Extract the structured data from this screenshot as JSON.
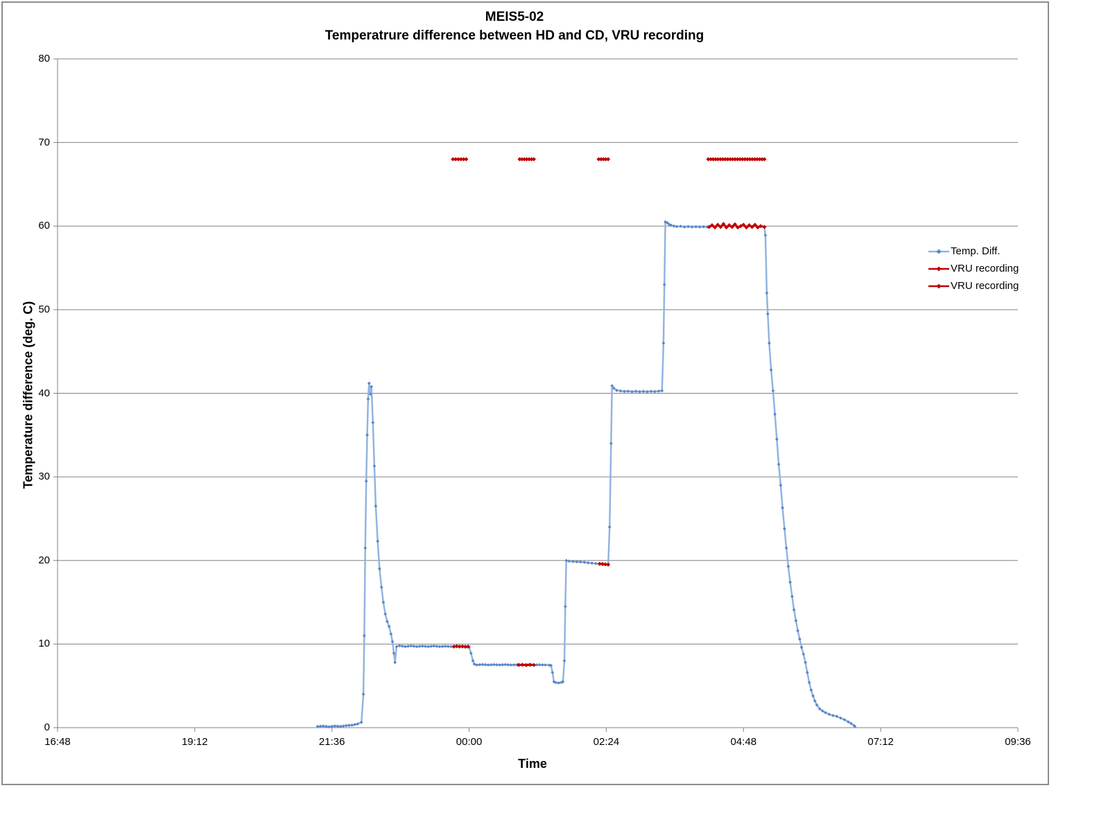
{
  "page": {
    "background": "#FFFFFF"
  },
  "chart": {
    "frame_border_color": "#8C8C8C",
    "colors": {
      "temp_diff_line": "#92B4DF",
      "temp_diff_marker": "#5B86C8",
      "vru_recording": "#C00000",
      "gridline": "#808080",
      "axis": "#808080",
      "text": "#000000"
    }
  },
  "chart_data": {
    "type": "line",
    "title": "MEIS5-02",
    "subtitle": "Temperatrure difference between HD and CD, VRU recording",
    "xlabel": "Time",
    "ylabel": "Temperature difference (deg. C)",
    "grid": "horizontal",
    "legend_position": "right-inside",
    "x_axis": {
      "unit": "minutes after 16:48",
      "total_minutes": 1008,
      "tick_interval_minutes": 144,
      "tick_labels": [
        "16:48",
        "19:12",
        "21:36",
        "00:00",
        "02:24",
        "04:48",
        "07:12",
        "09:36"
      ]
    },
    "y_axis": {
      "min": 0,
      "max": 80,
      "tick_interval": 10,
      "tick_labels": [
        "0",
        "10",
        "20",
        "30",
        "40",
        "50",
        "60",
        "70",
        "80"
      ]
    },
    "legend": [
      {
        "label": "Temp. Diff.",
        "line_color": "#92B4DF",
        "marker_color": "#5B86C8"
      },
      {
        "label": "VRU recording",
        "line_color": "#C00000",
        "marker_color": "#C00000"
      },
      {
        "label": "VRU recording",
        "line_color": "#C00000",
        "marker_color": "#C00000"
      }
    ],
    "series": [
      {
        "name": "Temp. Diff.",
        "style": "line+marker",
        "points": [
          [
            273,
            0.15
          ],
          [
            279,
            0.2
          ],
          [
            285,
            0.1
          ],
          [
            291,
            0.2
          ],
          [
            297,
            0.15
          ],
          [
            303,
            0.25
          ],
          [
            309,
            0.3
          ],
          [
            315,
            0.45
          ],
          [
            319,
            0.65
          ],
          [
            321,
            4
          ],
          [
            322,
            11
          ],
          [
            323,
            21.5
          ],
          [
            324,
            29.5
          ],
          [
            325,
            35
          ],
          [
            326,
            39.3
          ],
          [
            327,
            41.2
          ],
          [
            328.5,
            39.9
          ],
          [
            329.5,
            40.8
          ],
          [
            331,
            36.5
          ],
          [
            332.5,
            31.3
          ],
          [
            334,
            26.5
          ],
          [
            336,
            22.3
          ],
          [
            338,
            19
          ],
          [
            340,
            16.8
          ],
          [
            342,
            15
          ],
          [
            344,
            13.6
          ],
          [
            346,
            12.7
          ],
          [
            348,
            12.1
          ],
          [
            350,
            11.2
          ],
          [
            351.5,
            10.3
          ],
          [
            353,
            8.9
          ],
          [
            354.2,
            7.8
          ],
          [
            355.8,
            9.7
          ],
          [
            359,
            9.8
          ],
          [
            365,
            9.7
          ],
          [
            371,
            9.78
          ],
          [
            377,
            9.7
          ],
          [
            383,
            9.76
          ],
          [
            389,
            9.7
          ],
          [
            395,
            9.77
          ],
          [
            401,
            9.7
          ],
          [
            407,
            9.74
          ],
          [
            413,
            9.7
          ],
          [
            419,
            9.74
          ],
          [
            425,
            9.7
          ],
          [
            430,
            9.7
          ],
          [
            432,
            9.65
          ],
          [
            434,
            8.9
          ],
          [
            436,
            8.0
          ],
          [
            437.5,
            7.6
          ],
          [
            440,
            7.5
          ],
          [
            446,
            7.55
          ],
          [
            452,
            7.5
          ],
          [
            458,
            7.54
          ],
          [
            464,
            7.5
          ],
          [
            470,
            7.54
          ],
          [
            476,
            7.5
          ],
          [
            482,
            7.53
          ],
          [
            488,
            7.5
          ],
          [
            494,
            7.52
          ],
          [
            500,
            7.5
          ],
          [
            506,
            7.52
          ],
          [
            512,
            7.5
          ],
          [
            516,
            7.48
          ],
          [
            518,
            7.45
          ],
          [
            519.5,
            6.6
          ],
          [
            521,
            5.5
          ],
          [
            523,
            5.4
          ],
          [
            526,
            5.35
          ],
          [
            529,
            5.42
          ],
          [
            530.5,
            5.5
          ],
          [
            532,
            8
          ],
          [
            533,
            14.5
          ],
          [
            534,
            20.0
          ],
          [
            537,
            19.92
          ],
          [
            541,
            19.88
          ],
          [
            545,
            19.85
          ],
          [
            549,
            19.82
          ],
          [
            553,
            19.78
          ],
          [
            557,
            19.72
          ],
          [
            561,
            19.68
          ],
          [
            565,
            19.64
          ],
          [
            569,
            19.6
          ],
          [
            573,
            19.56
          ],
          [
            578,
            19.5
          ],
          [
            579.5,
            24
          ],
          [
            581,
            34
          ],
          [
            582,
            40.9
          ],
          [
            584,
            40.6
          ],
          [
            587,
            40.35
          ],
          [
            591,
            40.28
          ],
          [
            595,
            40.22
          ],
          [
            599,
            40.25
          ],
          [
            603,
            40.2
          ],
          [
            607,
            40.24
          ],
          [
            611,
            40.2
          ],
          [
            615,
            40.23
          ],
          [
            619,
            40.2
          ],
          [
            623,
            40.24
          ],
          [
            627,
            40.21
          ],
          [
            631,
            40.26
          ],
          [
            634.5,
            40.3
          ],
          [
            636,
            46
          ],
          [
            637,
            53
          ],
          [
            638,
            60.5
          ],
          [
            640,
            60.4
          ],
          [
            642,
            60.2
          ],
          [
            644,
            60.1
          ],
          [
            647,
            60.0
          ],
          [
            650,
            59.95
          ],
          [
            654,
            59.98
          ],
          [
            658,
            59.9
          ],
          [
            662,
            59.95
          ],
          [
            666,
            59.9
          ],
          [
            670,
            59.93
          ],
          [
            674,
            59.9
          ],
          [
            678,
            59.92
          ],
          [
            682,
            59.9
          ],
          [
            684,
            59.9
          ],
          [
            687,
            60.1
          ],
          [
            690,
            59.85
          ],
          [
            693,
            60.15
          ],
          [
            696,
            59.9
          ],
          [
            699,
            60.25
          ],
          [
            702,
            59.85
          ],
          [
            705,
            60.1
          ],
          [
            708,
            59.9
          ],
          [
            711,
            60.2
          ],
          [
            714,
            59.85
          ],
          [
            717,
            60.0
          ],
          [
            720,
            60.15
          ],
          [
            723,
            59.85
          ],
          [
            726,
            60.1
          ],
          [
            729,
            59.9
          ],
          [
            732,
            60.15
          ],
          [
            735,
            59.85
          ],
          [
            738,
            60.0
          ],
          [
            742,
            59.9
          ],
          [
            743,
            58.9
          ],
          [
            744.5,
            52
          ],
          [
            745.5,
            49.5
          ],
          [
            747,
            46
          ],
          [
            749,
            42.8
          ],
          [
            751,
            40.3
          ],
          [
            753,
            37.5
          ],
          [
            755,
            34.5
          ],
          [
            757,
            31.5
          ],
          [
            759,
            29
          ],
          [
            761,
            26.3
          ],
          [
            763,
            23.8
          ],
          [
            765,
            21.5
          ],
          [
            767,
            19.3
          ],
          [
            769,
            17.4
          ],
          [
            771,
            15.7
          ],
          [
            773,
            14.1
          ],
          [
            775,
            12.8
          ],
          [
            777,
            11.6
          ],
          [
            779,
            10.6
          ],
          [
            781,
            9.6
          ],
          [
            783,
            8.8
          ],
          [
            785,
            7.8
          ],
          [
            787,
            6.6
          ],
          [
            789,
            5.4
          ],
          [
            791,
            4.5
          ],
          [
            793,
            3.8
          ],
          [
            795,
            3.2
          ],
          [
            797,
            2.7
          ],
          [
            800,
            2.25
          ],
          [
            803,
            2.0
          ],
          [
            806,
            1.8
          ],
          [
            810,
            1.6
          ],
          [
            814,
            1.45
          ],
          [
            818,
            1.35
          ],
          [
            822,
            1.15
          ],
          [
            826,
            0.95
          ],
          [
            830,
            0.7
          ],
          [
            833,
            0.5
          ],
          [
            836,
            0.25
          ],
          [
            837,
            0.15
          ]
        ]
      },
      {
        "name": "VRU recording",
        "style": "line+marker",
        "description": "recording periods drawn over the temperature curve",
        "segments": [
          [
            [
              416,
              9.7
            ],
            [
              419,
              9.74
            ],
            [
              422,
              9.7
            ],
            [
              425,
              9.72
            ],
            [
              428,
              9.68
            ],
            [
              431,
              9.7
            ]
          ],
          [
            [
              484,
              7.5
            ],
            [
              488,
              7.53
            ],
            [
              492,
              7.49
            ],
            [
              496,
              7.52
            ],
            [
              500,
              7.5
            ]
          ],
          [
            [
              569,
              19.6
            ],
            [
              572,
              19.57
            ],
            [
              575,
              19.54
            ],
            [
              578,
              19.5
            ]
          ],
          [
            [
              684,
              59.9
            ],
            [
              687,
              60.1
            ],
            [
              690,
              59.85
            ],
            [
              693,
              60.15
            ],
            [
              696,
              59.9
            ],
            [
              699,
              60.25
            ],
            [
              702,
              59.85
            ],
            [
              705,
              60.1
            ],
            [
              708,
              59.9
            ],
            [
              711,
              60.2
            ],
            [
              714,
              59.85
            ],
            [
              717,
              60.0
            ],
            [
              720,
              60.15
            ],
            [
              723,
              59.85
            ],
            [
              726,
              60.1
            ],
            [
              729,
              59.9
            ],
            [
              732,
              60.15
            ],
            [
              735,
              59.85
            ],
            [
              738,
              60.0
            ],
            [
              742,
              59.9
            ]
          ]
        ]
      },
      {
        "name": "VRU recording",
        "style": "line+marker",
        "description": "recording flag at constant level 68",
        "segments": [
          [
            [
              415,
              68
            ],
            [
              429,
              68
            ]
          ],
          [
            [
              485,
              68
            ],
            [
              500,
              68
            ]
          ],
          [
            [
              568,
              68
            ],
            [
              578,
              68
            ]
          ],
          [
            [
              683,
              68
            ],
            [
              742,
              68
            ]
          ]
        ]
      }
    ]
  }
}
